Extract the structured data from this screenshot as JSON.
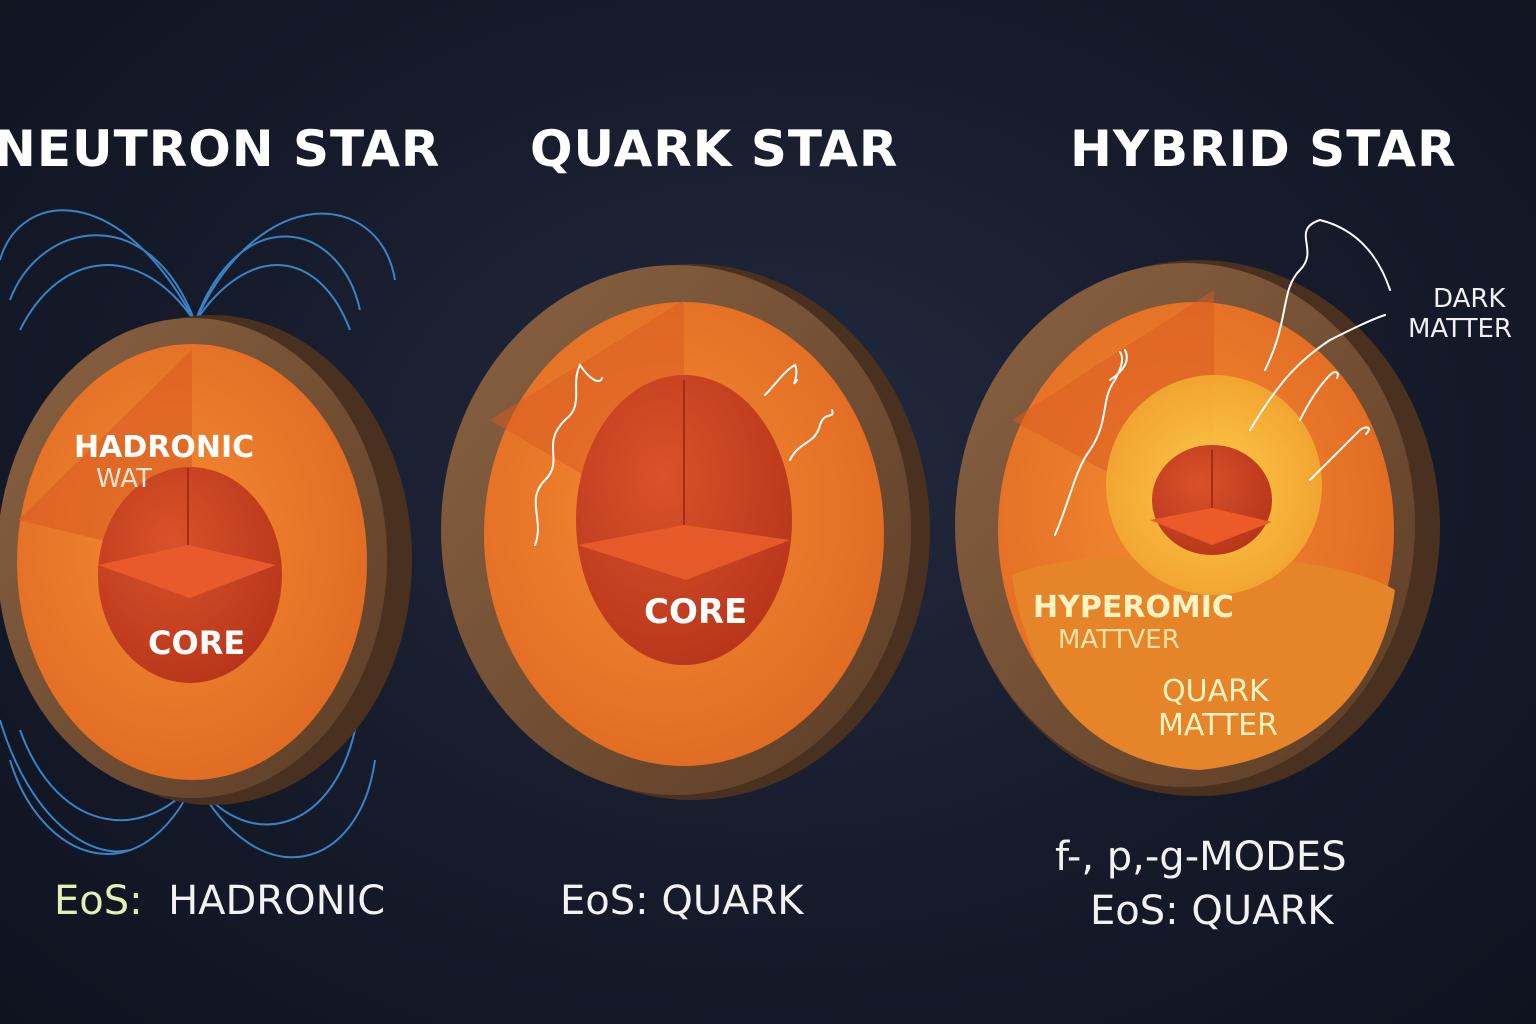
{
  "stars": [
    {
      "title": "NEUTRON STAR",
      "outer_label_1": "HADRONIC",
      "outer_label_2": "WAT",
      "core_label": "CORE",
      "eos_key": "EoS:",
      "eos_value": "HADRONIC"
    },
    {
      "title": "QUARK STAR",
      "core_label": "CORE",
      "eos_key": "EoS:",
      "eos_value": "QUARK"
    },
    {
      "title": "HYBRID STAR",
      "side_label_1": "DARK",
      "side_label_2": "MATTER",
      "layer_label_1": "HYPEROMIC",
      "layer_label_2": "MATTVER",
      "inner_label_1": "QUARK",
      "inner_label_2": "MATTER",
      "modes_label": "f-, p,-g-MODES",
      "eos_key": "EoS:",
      "eos_value": "QUARK"
    }
  ],
  "colors": {
    "background": "#161b2b",
    "crust": "#7a5638",
    "mantle": "#ef7a2a",
    "core": "#c8401e",
    "hyperonic_layer": "#f6b93b",
    "field_lines": "#3b8fd9"
  }
}
